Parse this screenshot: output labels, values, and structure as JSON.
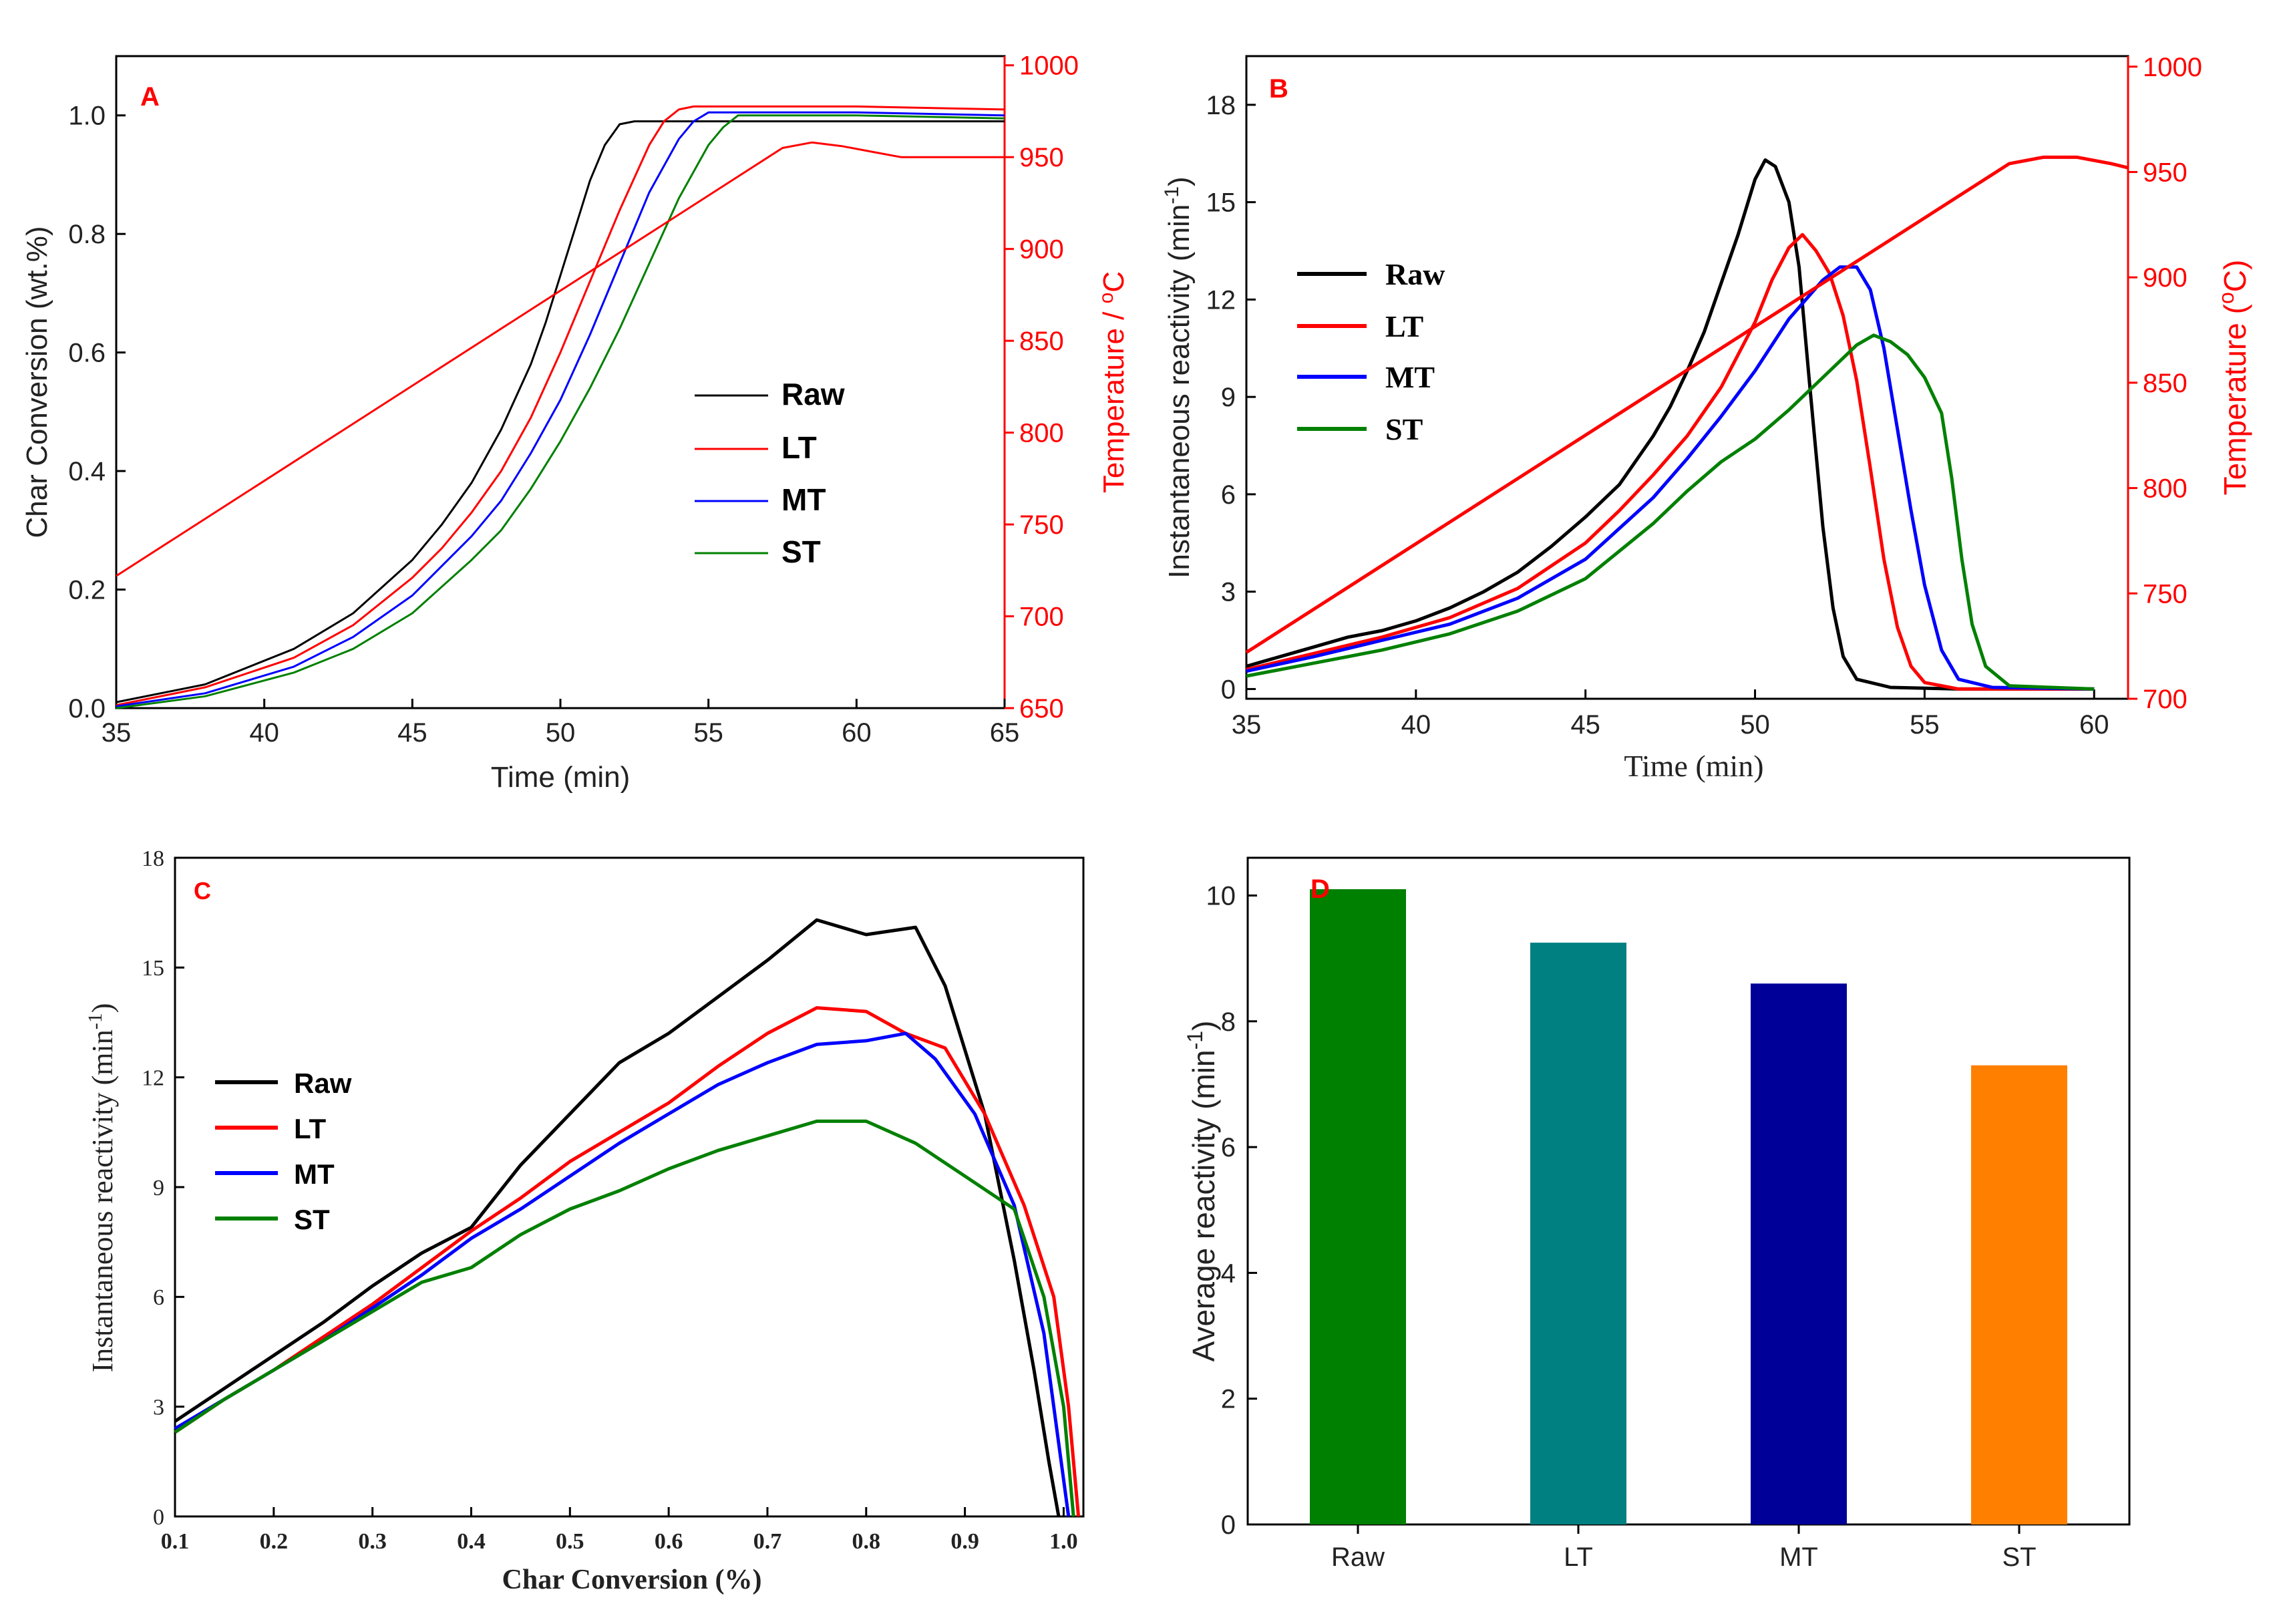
{
  "colors": {
    "raw": "#000000",
    "lt": "#ff0000",
    "mt": "#0000ff",
    "st": "#008000",
    "temperature": "#ff0000",
    "panel_letter": "#ff0000",
    "bar_raw": "#008000",
    "bar_lt": "#008080",
    "bar_mt": "#000099",
    "bar_st": "#ff8000"
  },
  "chart_data": [
    {
      "panel": "A",
      "type": "line",
      "title": "",
      "xlabel": "Time (min)",
      "ylabel": "Char Conversion (wt.%)",
      "y2label": "Temperature / °C",
      "y2label_base": "Temperature / ",
      "y2label_sup": "o",
      "y2label_tail": "C",
      "xlim": [
        35,
        65
      ],
      "ylim": [
        0,
        1.1
      ],
      "y2lim": [
        650,
        1005
      ],
      "xticks": [
        35,
        40,
        45,
        50,
        55,
        60,
        65
      ],
      "yticks": [
        "0.0",
        "0.2",
        "0.4",
        "0.6",
        "0.8",
        "1.0"
      ],
      "y2ticks": [
        650,
        700,
        750,
        800,
        850,
        900,
        950,
        1000
      ],
      "legend": [
        "Raw",
        "LT",
        "MT",
        "ST"
      ],
      "series": [
        {
          "name": "Raw",
          "x": [
            35,
            38,
            41,
            43,
            45,
            46,
            47,
            48,
            49,
            49.5,
            50,
            50.5,
            51,
            51.5,
            52,
            52.5,
            53,
            65
          ],
          "y": [
            0.01,
            0.04,
            0.1,
            0.16,
            0.25,
            0.31,
            0.38,
            0.47,
            0.58,
            0.65,
            0.73,
            0.81,
            0.89,
            0.95,
            0.985,
            0.99,
            0.99,
            0.99
          ]
        },
        {
          "name": "LT",
          "x": [
            35,
            38,
            41,
            43,
            45,
            46,
            47,
            48,
            49,
            50,
            51,
            52,
            53,
            53.5,
            54,
            54.5,
            60,
            65
          ],
          "y": [
            0.005,
            0.035,
            0.085,
            0.14,
            0.22,
            0.27,
            0.33,
            0.4,
            0.49,
            0.6,
            0.72,
            0.84,
            0.95,
            0.99,
            1.01,
            1.015,
            1.015,
            1.01
          ]
        },
        {
          "name": "MT",
          "x": [
            35,
            38,
            41,
            43,
            45,
            47,
            48,
            49,
            50,
            51,
            52,
            53,
            54,
            54.5,
            55,
            55.5,
            60,
            65
          ],
          "y": [
            0.003,
            0.025,
            0.07,
            0.12,
            0.19,
            0.29,
            0.35,
            0.43,
            0.52,
            0.63,
            0.75,
            0.87,
            0.96,
            0.99,
            1.005,
            1.005,
            1.005,
            1.0
          ]
        },
        {
          "name": "ST",
          "x": [
            35,
            38,
            41,
            43,
            45,
            47,
            48,
            49,
            50,
            51,
            52,
            53,
            54,
            55,
            55.5,
            56,
            60,
            65
          ],
          "y": [
            0.0,
            0.02,
            0.06,
            0.1,
            0.16,
            0.25,
            0.3,
            0.37,
            0.45,
            0.54,
            0.64,
            0.75,
            0.86,
            0.95,
            0.98,
            1.0,
            1.0,
            0.995
          ]
        },
        {
          "name": "Temperature",
          "axis": "right",
          "x": [
            35,
            57.5,
            58.5,
            59.5,
            60.5,
            61.5,
            62.5,
            65
          ],
          "y": [
            722,
            955,
            958,
            956,
            953,
            950,
            950,
            950
          ]
        }
      ]
    },
    {
      "panel": "B",
      "type": "line",
      "title": "",
      "xlabel": "Time (min)",
      "ylabel": "Instantaneous reactivity (min⁻¹)",
      "ylabel_base": "Instantaneous reactivity (min",
      "ylabel_sup": "-1",
      "ylabel_tail": ")",
      "y2label": "Temperature (°C)",
      "y2label_base": "Temperature (",
      "y2label_sup": "o",
      "y2label_tail": "C)",
      "xlim": [
        35,
        61
      ],
      "ylim": [
        -0.3,
        19.5
      ],
      "y2lim": [
        700,
        1005
      ],
      "xticks": [
        35,
        40,
        45,
        50,
        55,
        60
      ],
      "yticks": [
        0,
        3,
        6,
        9,
        12,
        15,
        18
      ],
      "y2ticks": [
        700,
        750,
        800,
        850,
        900,
        950,
        1000
      ],
      "legend": [
        "Raw",
        "LT",
        "MT",
        "ST"
      ],
      "series": [
        {
          "name": "Raw",
          "x": [
            35,
            36,
            37,
            38,
            39,
            40,
            41,
            42,
            43,
            44,
            45,
            46,
            47,
            47.5,
            48,
            48.5,
            49,
            49.5,
            50,
            50.3,
            50.6,
            51,
            51.3,
            51.6,
            52,
            52.3,
            52.6,
            53,
            54,
            56,
            60
          ],
          "y": [
            0.7,
            1.0,
            1.3,
            1.6,
            1.8,
            2.1,
            2.5,
            3.0,
            3.6,
            4.4,
            5.3,
            6.3,
            7.8,
            8.7,
            9.8,
            11.0,
            12.5,
            14.0,
            15.7,
            16.3,
            16.1,
            15.0,
            13.0,
            9.5,
            5.0,
            2.5,
            1.0,
            0.3,
            0.05,
            0.0,
            0.0
          ]
        },
        {
          "name": "LT",
          "x": [
            35,
            37,
            39,
            41,
            43,
            45,
            46,
            47,
            48,
            49,
            50,
            50.5,
            51,
            51.4,
            51.8,
            52.2,
            52.6,
            53,
            53.4,
            53.8,
            54.2,
            54.6,
            55,
            56,
            60
          ],
          "y": [
            0.6,
            1.1,
            1.6,
            2.2,
            3.1,
            4.5,
            5.5,
            6.6,
            7.8,
            9.3,
            11.3,
            12.6,
            13.6,
            14.0,
            13.5,
            12.8,
            11.5,
            9.5,
            6.8,
            4.0,
            1.9,
            0.7,
            0.2,
            0.0,
            0.0
          ]
        },
        {
          "name": "MT",
          "x": [
            35,
            37,
            39,
            41,
            43,
            45,
            47,
            48,
            49,
            50,
            51,
            52,
            52.5,
            53,
            53.4,
            53.8,
            54.2,
            54.6,
            55,
            55.5,
            56,
            57,
            60
          ],
          "y": [
            0.55,
            1.0,
            1.5,
            2.0,
            2.8,
            4.0,
            5.9,
            7.1,
            8.4,
            9.8,
            11.4,
            12.6,
            13.0,
            13.0,
            12.3,
            10.5,
            8.0,
            5.5,
            3.2,
            1.2,
            0.3,
            0.05,
            0.0
          ]
        },
        {
          "name": "ST",
          "x": [
            35,
            37,
            39,
            41,
            43,
            45,
            47,
            48,
            49,
            50,
            51,
            52,
            53,
            53.5,
            54,
            54.5,
            55,
            55.5,
            55.8,
            56.1,
            56.4,
            56.8,
            57.5,
            60
          ],
          "y": [
            0.4,
            0.8,
            1.2,
            1.7,
            2.4,
            3.4,
            5.1,
            6.1,
            7.0,
            7.7,
            8.6,
            9.6,
            10.6,
            10.9,
            10.7,
            10.3,
            9.6,
            8.5,
            6.5,
            4.0,
            2.0,
            0.7,
            0.1,
            0.0
          ]
        },
        {
          "name": "Temperature",
          "axis": "right",
          "x": [
            35,
            57.5,
            58.5,
            59.5,
            60.5,
            61
          ],
          "y": [
            722,
            954,
            957,
            957,
            954,
            952
          ]
        }
      ]
    },
    {
      "panel": "C",
      "type": "line",
      "title": "",
      "xlabel": "Char Conversion (%)",
      "ylabel": "Instantaneous reactivity (min⁻¹)",
      "ylabel_base": "Instantaneous reactivity (min",
      "ylabel_sup": "-1",
      "ylabel_tail": ")",
      "xlim": [
        0.1,
        1.02
      ],
      "ylim": [
        0,
        18
      ],
      "xticks": [
        "0.1",
        "0.2",
        "0.3",
        "0.4",
        "0.5",
        "0.6",
        "0.7",
        "0.8",
        "0.9",
        "1.0"
      ],
      "yticks": [
        0,
        3,
        6,
        9,
        12,
        15,
        18
      ],
      "legend": [
        "Raw",
        "LT",
        "MT",
        "ST"
      ],
      "series": [
        {
          "name": "Raw",
          "x": [
            0.1,
            0.15,
            0.2,
            0.25,
            0.3,
            0.35,
            0.4,
            0.45,
            0.5,
            0.55,
            0.6,
            0.65,
            0.7,
            0.75,
            0.8,
            0.85,
            0.88,
            0.92,
            0.95,
            0.97,
            0.985,
            0.995
          ],
          "y": [
            2.6,
            3.5,
            4.4,
            5.3,
            6.3,
            7.2,
            7.9,
            9.6,
            11.0,
            12.4,
            13.2,
            14.2,
            15.2,
            16.3,
            15.9,
            16.1,
            14.5,
            11.0,
            7.0,
            4.0,
            1.5,
            0.0
          ]
        },
        {
          "name": "LT",
          "x": [
            0.1,
            0.15,
            0.2,
            0.25,
            0.3,
            0.35,
            0.4,
            0.45,
            0.5,
            0.55,
            0.6,
            0.65,
            0.7,
            0.75,
            0.8,
            0.84,
            0.88,
            0.92,
            0.96,
            0.99,
            1.005,
            1.015
          ],
          "y": [
            2.3,
            3.2,
            4.0,
            4.9,
            5.8,
            6.8,
            7.8,
            8.7,
            9.7,
            10.5,
            11.3,
            12.3,
            13.2,
            13.9,
            13.8,
            13.2,
            12.8,
            11.0,
            8.5,
            6.0,
            3.0,
            0.0
          ]
        },
        {
          "name": "MT",
          "x": [
            0.1,
            0.15,
            0.2,
            0.25,
            0.3,
            0.35,
            0.4,
            0.45,
            0.5,
            0.55,
            0.6,
            0.65,
            0.7,
            0.75,
            0.8,
            0.84,
            0.87,
            0.91,
            0.95,
            0.98,
            0.995,
            1.005
          ],
          "y": [
            2.4,
            3.2,
            4.0,
            4.8,
            5.7,
            6.6,
            7.6,
            8.4,
            9.3,
            10.2,
            11.0,
            11.8,
            12.4,
            12.9,
            13.0,
            13.2,
            12.5,
            11.0,
            8.5,
            5.0,
            2.0,
            0.0
          ]
        },
        {
          "name": "ST",
          "x": [
            0.1,
            0.15,
            0.2,
            0.25,
            0.3,
            0.35,
            0.4,
            0.45,
            0.5,
            0.55,
            0.6,
            0.65,
            0.7,
            0.75,
            0.8,
            0.85,
            0.9,
            0.95,
            0.98,
            1.0,
            1.01
          ],
          "y": [
            2.3,
            3.2,
            4.0,
            4.8,
            5.6,
            6.4,
            6.8,
            7.7,
            8.4,
            8.9,
            9.5,
            10.0,
            10.4,
            10.8,
            10.8,
            10.2,
            9.3,
            8.4,
            6.0,
            3.0,
            0.0
          ]
        }
      ]
    },
    {
      "panel": "D",
      "type": "bar",
      "title": "",
      "xlabel": "",
      "ylabel": "Average reactivity (min⁻¹)",
      "ylabel_base": "Average reactivity (min",
      "ylabel_sup": "-1",
      "ylabel_tail": ")",
      "ylim": [
        0,
        10.6
      ],
      "yticks": [
        0,
        2,
        4,
        6,
        8,
        10
      ],
      "categories": [
        "Raw",
        "LT",
        "MT",
        "ST"
      ],
      "values": [
        10.1,
        9.25,
        8.6,
        7.3
      ]
    }
  ],
  "panels": {
    "a_letter": "A",
    "b_letter": "B",
    "c_letter": "C",
    "d_letter": "D",
    "a_xlabel": "Time (min)",
    "a_ylabel": "Char Conversion (wt.%)",
    "b_xlabel": "Time (min)",
    "c_xlabel": "Char Conversion (%)"
  }
}
